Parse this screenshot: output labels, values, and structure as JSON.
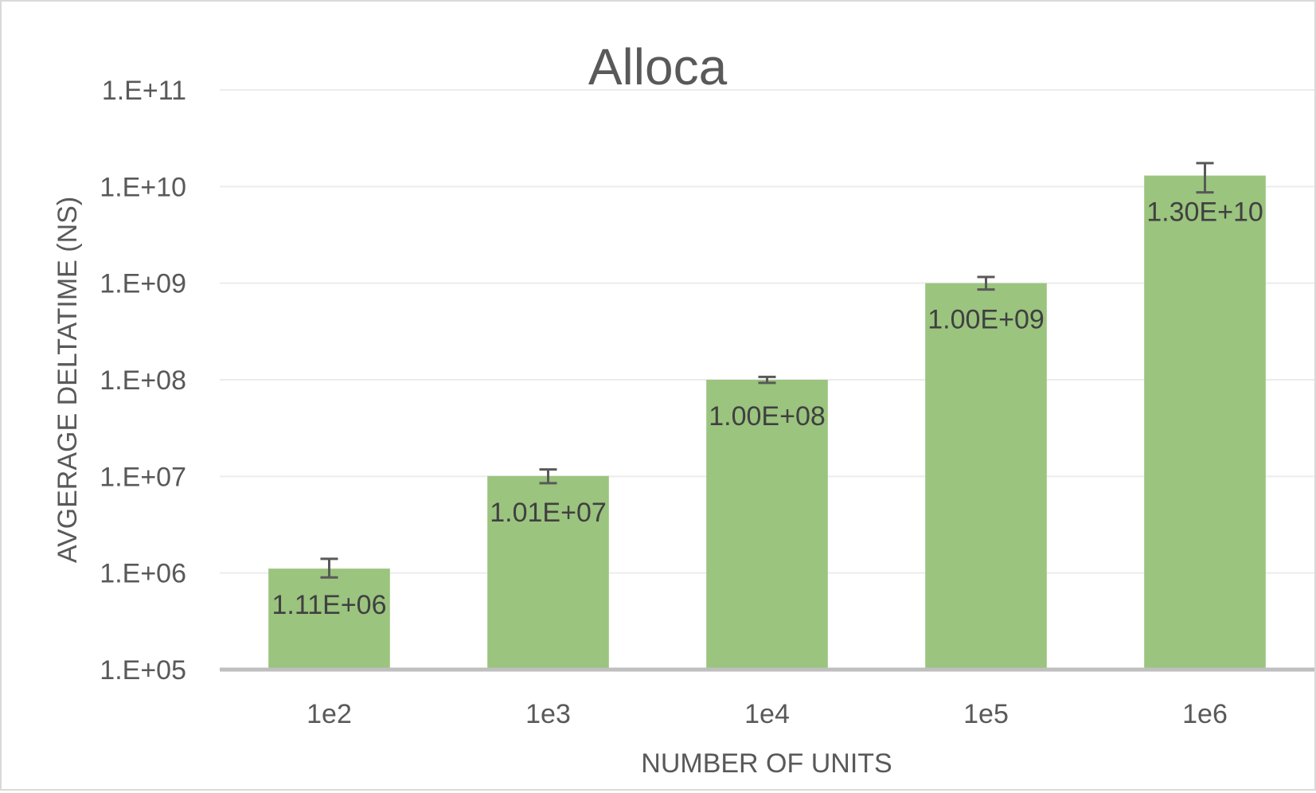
{
  "chart_data": {
    "type": "bar",
    "title": "Alloca",
    "xlabel": "NUMBER OF UNITS",
    "ylabel": "AVGERAGE DELTATIME (NS)",
    "y_scale": "log",
    "ylim": [
      100000,
      100000000000
    ],
    "y_ticks": [
      {
        "value": 100000,
        "label": "1.E+05"
      },
      {
        "value": 1000000,
        "label": "1.E+06"
      },
      {
        "value": 10000000,
        "label": "1.E+07"
      },
      {
        "value": 100000000,
        "label": "1.E+08"
      },
      {
        "value": 1000000000,
        "label": "1.E+09"
      },
      {
        "value": 10000000000,
        "label": "1.E+10"
      },
      {
        "value": 100000000000,
        "label": "1.E+11"
      }
    ],
    "categories": [
      "1e2",
      "1e3",
      "1e4",
      "1e5",
      "1e6"
    ],
    "values": [
      1110000,
      10100000,
      100000000,
      1000000000,
      13000000000
    ],
    "data_labels": [
      "1.11E+06",
      "1.01E+07",
      "1.00E+08",
      "1.00E+09",
      "1.30E+10"
    ],
    "error_low": [
      900000,
      8500000,
      93000000,
      860000000,
      8700000000
    ],
    "error_high": [
      1400000,
      11800000,
      107000000,
      1160000000,
      17500000000
    ],
    "bar_color": "#9bc47f",
    "grid": true,
    "legend": "none"
  }
}
